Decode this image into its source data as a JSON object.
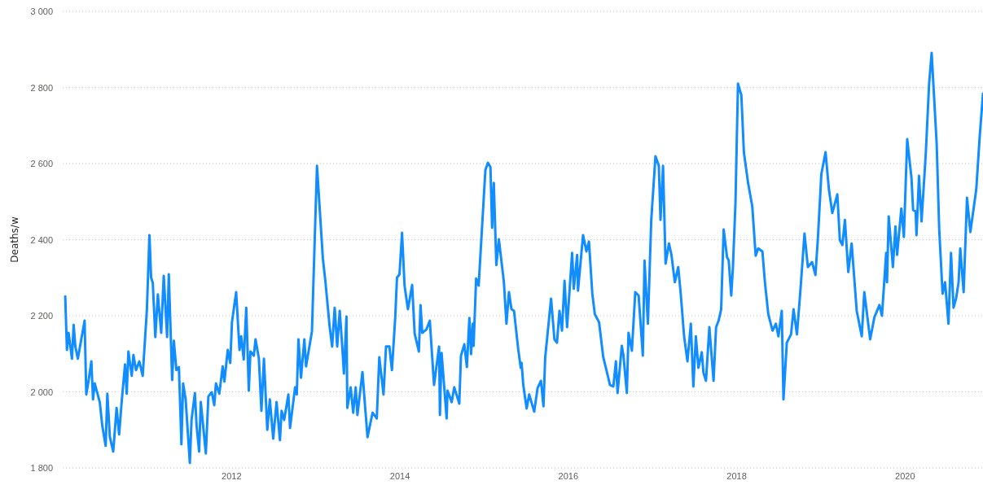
{
  "chart_data": {
    "type": "line",
    "ylabel": "Deaths/w",
    "grid": "y",
    "marker": "none",
    "line_style": "solid",
    "xlim": [
      2010,
      2020.93
    ],
    "xticks": [
      2012,
      2014,
      2016,
      2018,
      2020
    ],
    "ylim": [
      1800,
      3000
    ],
    "yticks": [
      {
        "value": 1800,
        "label": "1 800"
      },
      {
        "value": 2000,
        "label": "2 000"
      },
      {
        "value": 2200,
        "label": "2 200"
      },
      {
        "value": 2400,
        "label": "2 400"
      },
      {
        "value": 2600,
        "label": "2 600"
      },
      {
        "value": 2800,
        "label": "2 800"
      },
      {
        "value": 3000,
        "label": "3 000"
      }
    ],
    "series": [
      {
        "color": "#118dff",
        "x": [
          2010.03,
          2010.05,
          2010.07,
          2010.11,
          2010.13,
          2010.15,
          2010.18,
          2010.26,
          2010.28,
          2010.31,
          2010.34,
          2010.36,
          2010.38,
          2010.44,
          2010.47,
          2010.51,
          2010.53,
          2010.56,
          2010.6,
          2010.64,
          2010.67,
          2010.7,
          2010.74,
          2010.76,
          2010.78,
          2010.82,
          2010.84,
          2010.87,
          2010.91,
          2010.95,
          2011.0,
          2011.03,
          2011.05,
          2011.07,
          2011.1,
          2011.13,
          2011.17,
          2011.2,
          2011.24,
          2011.26,
          2011.3,
          2011.32,
          2011.35,
          2011.38,
          2011.41,
          2011.43,
          2011.46,
          2011.51,
          2011.53,
          2011.57,
          2011.59,
          2011.62,
          2011.64,
          2011.7,
          2011.73,
          2011.77,
          2011.8,
          2011.82,
          2011.86,
          2011.9,
          2011.92,
          2011.96,
          2011.99,
          2012.01,
          2012.06,
          2012.1,
          2012.12,
          2012.15,
          2012.18,
          2012.21,
          2012.23,
          2012.27,
          2012.29,
          2012.33,
          2012.36,
          2012.39,
          2012.43,
          2012.46,
          2012.5,
          2012.54,
          2012.58,
          2012.6,
          2012.63,
          2012.68,
          2012.7,
          2012.76,
          2012.78,
          2012.8,
          2012.83,
          2012.87,
          2012.89,
          2012.96,
          2012.99,
          2013.02,
          2013.09,
          2013.12,
          2013.17,
          2013.2,
          2013.23,
          2013.26,
          2013.29,
          2013.32,
          2013.34,
          2013.37,
          2013.38,
          2013.42,
          2013.45,
          2013.48,
          2013.5,
          2013.56,
          2013.59,
          2013.62,
          2013.68,
          2013.73,
          2013.76,
          2013.81,
          2013.84,
          2013.88,
          2013.91,
          2013.95,
          2013.97,
          2014.0,
          2014.03,
          2014.06,
          2014.1,
          2014.15,
          2014.18,
          2014.23,
          2014.25,
          2014.27,
          2014.32,
          2014.36,
          2014.41,
          2014.47,
          2014.48,
          2014.5,
          2014.56,
          2014.57,
          2014.62,
          2014.65,
          2014.71,
          2014.73,
          2014.77,
          2014.8,
          2014.83,
          2014.85,
          2014.87,
          2014.88,
          2014.91,
          2014.94,
          2015.02,
          2015.05,
          2015.08,
          2015.1,
          2015.12,
          2015.15,
          2015.18,
          2015.24,
          2015.27,
          2015.3,
          2015.33,
          2015.36,
          2015.41,
          2015.44,
          2015.45,
          2015.47,
          2015.51,
          2015.54,
          2015.6,
          2015.64,
          2015.68,
          2015.71,
          2015.73,
          2015.8,
          2015.84,
          2015.87,
          2015.9,
          2015.93,
          2015.96,
          2015.99,
          2016.05,
          2016.07,
          2016.11,
          2016.12,
          2016.18,
          2016.22,
          2016.25,
          2016.29,
          2016.32,
          2016.37,
          2016.42,
          2016.46,
          2016.5,
          2016.54,
          2016.57,
          2016.59,
          2016.64,
          2016.66,
          2016.7,
          2016.72,
          2016.76,
          2016.8,
          2016.84,
          2016.89,
          2016.91,
          2016.95,
          2016.99,
          2017.04,
          2017.08,
          2017.1,
          2017.13,
          2017.16,
          2017.2,
          2017.23,
          2017.27,
          2017.31,
          2017.34,
          2017.38,
          2017.42,
          2017.46,
          2017.49,
          2017.52,
          2017.55,
          2017.59,
          2017.61,
          2017.64,
          2017.68,
          2017.73,
          2017.76,
          2017.79,
          2017.82,
          2017.85,
          2017.89,
          2017.91,
          2017.94,
          2017.96,
          2017.99,
          2018.02,
          2018.06,
          2018.09,
          2018.14,
          2018.19,
          2018.23,
          2018.26,
          2018.31,
          2018.34,
          2018.38,
          2018.43,
          2018.47,
          2018.5,
          2018.54,
          2018.56,
          2018.6,
          2018.65,
          2018.68,
          2018.72,
          2018.76,
          2018.81,
          2018.85,
          2018.9,
          2018.94,
          2018.97,
          2019.01,
          2019.06,
          2019.1,
          2019.14,
          2019.2,
          2019.23,
          2019.26,
          2019.29,
          2019.33,
          2019.37,
          2019.43,
          2019.49,
          2019.52,
          2019.59,
          2019.64,
          2019.7,
          2019.73,
          2019.78,
          2019.79,
          2019.81,
          2019.86,
          2019.89,
          2019.91,
          2019.96,
          2019.99,
          2020.03,
          2020.08,
          2020.1,
          2020.13,
          2020.14,
          2020.17,
          2020.2,
          2020.25,
          2020.29,
          2020.32,
          2020.38,
          2020.41,
          2020.45,
          2020.48,
          2020.52,
          2020.55,
          2020.58,
          2020.61,
          2020.64,
          2020.66,
          2020.7,
          2020.74,
          2020.78,
          2020.85,
          2020.89,
          2020.93
        ],
        "values": [
          2251,
          2110,
          2155,
          2087,
          2176,
          2119,
          2087,
          2187,
          1993,
          2033,
          2080,
          1980,
          2022,
          1973,
          1911,
          1858,
          1995,
          1881,
          1843,
          1958,
          1888,
          1973,
          2072,
          1995,
          2106,
          2042,
          2097,
          2057,
          2080,
          2042,
          2217,
          2412,
          2300,
          2286,
          2144,
          2256,
          2155,
          2305,
          2144,
          2309,
          2031,
          2134,
          2057,
          2065,
          1862,
          2022,
          1980,
          1813,
          1926,
          1997,
          1911,
          1843,
          1973,
          1838,
          1988,
          1999,
          1965,
          2022,
          1995,
          2067,
          2027,
          2110,
          2076,
          2183,
          2262,
          2110,
          2146,
          2085,
          2221,
          2003,
          2106,
          2095,
          2138,
          2087,
          1950,
          2087,
          1900,
          1980,
          1877,
          1973,
          1873,
          1950,
          1926,
          1993,
          1905,
          2012,
          1993,
          2138,
          2037,
          2138,
          2067,
          2159,
          2378,
          2594,
          2350,
          2290,
          2172,
          2119,
          2221,
          2119,
          2213,
          2119,
          2048,
          2198,
          1958,
          2012,
          1945,
          2012,
          1939,
          2052,
          1965,
          1881,
          1945,
          1930,
          2091,
          1993,
          2119,
          2119,
          2057,
          2198,
          2300,
          2309,
          2418,
          2279,
          2217,
          2281,
          2153,
          2106,
          2228,
          2155,
          2164,
          2187,
          2018,
          2119,
          1939,
          2102,
          1930,
          2003,
          1973,
          2012,
          1969,
          2095,
          2125,
          2065,
          2194,
          2099,
          2179,
          2121,
          2298,
          2279,
          2583,
          2602,
          2591,
          2431,
          2549,
          2333,
          2401,
          2288,
          2179,
          2262,
          2217,
          2213,
          2112,
          2063,
          2076,
          2018,
          1956,
          1993,
          1948,
          2010,
          2029,
          1962,
          2089,
          2245,
          2138,
          2129,
          2213,
          2161,
          2292,
          2170,
          2365,
          2271,
          2360,
          2266,
          2412,
          2369,
          2395,
          2258,
          2204,
          2183,
          2091,
          2055,
          2018,
          2014,
          2080,
          1997,
          2121,
          2095,
          1997,
          2155,
          2108,
          2262,
          2253,
          2095,
          2345,
          2179,
          2452,
          2619,
          2594,
          2452,
          2594,
          2337,
          2390,
          2360,
          2288,
          2328,
          2258,
          2146,
          2080,
          2179,
          2014,
          2146,
          2063,
          2104,
          2050,
          2029,
          2170,
          2029,
          2170,
          2187,
          2217,
          2427,
          2354,
          2345,
          2253,
          2328,
          2495,
          2810,
          2780,
          2630,
          2549,
          2487,
          2358,
          2377,
          2369,
          2288,
          2204,
          2161,
          2179,
          2146,
          2213,
          1980,
          2129,
          2151,
          2217,
          2151,
          2262,
          2416,
          2328,
          2341,
          2307,
          2407,
          2572,
          2630,
          2532,
          2470,
          2519,
          2399,
          2386,
          2452,
          2315,
          2390,
          2213,
          2146,
          2262,
          2138,
          2196,
          2228,
          2200,
          2365,
          2288,
          2461,
          2328,
          2435,
          2360,
          2482,
          2407,
          2664,
          2564,
          2478,
          2474,
          2412,
          2568,
          2448,
          2624,
          2810,
          2891,
          2651,
          2427,
          2258,
          2288,
          2179,
          2365,
          2221,
          2245,
          2288,
          2377,
          2262,
          2510,
          2420,
          2532,
          2668,
          2784
        ]
      }
    ]
  }
}
